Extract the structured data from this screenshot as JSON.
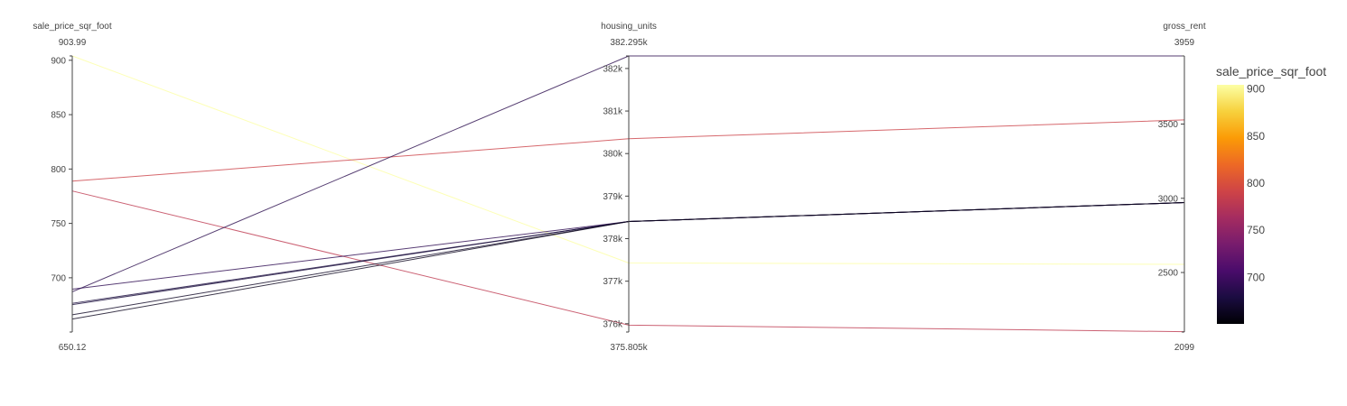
{
  "chart_data": {
    "type": "parallel_coordinates",
    "dimensions": [
      {
        "label": "sale_price_sqr_foot",
        "range": [
          650.12,
          903.99
        ],
        "range_labels": [
          "650.12",
          "903.99"
        ],
        "ticks": [
          {
            "value": 700,
            "label": "700"
          },
          {
            "value": 750,
            "label": "750"
          },
          {
            "value": 800,
            "label": "800"
          },
          {
            "value": 850,
            "label": "850"
          },
          {
            "value": 900,
            "label": "900"
          }
        ]
      },
      {
        "label": "housing_units",
        "range": [
          375805,
          382295
        ],
        "range_labels": [
          "375.805k",
          "382.295k"
        ],
        "ticks": [
          {
            "value": 376000,
            "label": "376k"
          },
          {
            "value": 377000,
            "label": "377k"
          },
          {
            "value": 378000,
            "label": "378k"
          },
          {
            "value": 379000,
            "label": "379k"
          },
          {
            "value": 380000,
            "label": "380k"
          },
          {
            "value": 381000,
            "label": "381k"
          },
          {
            "value": 382000,
            "label": "382k"
          }
        ]
      },
      {
        "label": "gross_rent",
        "range": [
          2099,
          3959
        ],
        "range_labels": [
          "2099",
          "3959"
        ],
        "ticks": [
          {
            "value": 2500,
            "label": "2500"
          },
          {
            "value": 3000,
            "label": "3000"
          },
          {
            "value": 3500,
            "label": "3500"
          }
        ]
      }
    ],
    "lines": [
      {
        "sale_price_sqr_foot": 903.99,
        "housing_units": 377427,
        "gross_rent": 2555
      },
      {
        "sale_price_sqr_foot": 788.84,
        "housing_units": 380348,
        "gross_rent": 3528
      },
      {
        "sale_price_sqr_foot": 779.81,
        "housing_units": 375967,
        "gross_rent": 2101
      },
      {
        "sale_price_sqr_foot": 689.56,
        "housing_units": 378402,
        "gross_rent": 2971
      },
      {
        "sale_price_sqr_foot": 687.09,
        "housing_units": 382295,
        "gross_rent": 3959
      },
      {
        "sale_price_sqr_foot": 676.51,
        "housing_units": 378402,
        "gross_rent": 2971
      },
      {
        "sale_price_sqr_foot": 675.35,
        "housing_units": 378402,
        "gross_rent": 2971
      },
      {
        "sale_price_sqr_foot": 665.96,
        "housing_units": 378402,
        "gross_rent": 2971
      },
      {
        "sale_price_sqr_foot": 662.02,
        "housing_units": 378402,
        "gross_rent": 2971
      }
    ],
    "colorbar": {
      "title": "sale_price_sqr_foot",
      "colorscale": "inferno",
      "range": [
        650.12,
        903.99
      ],
      "ticks": [
        700,
        750,
        800,
        850,
        900
      ],
      "colors": [
        "#000004",
        "#1b0c41",
        "#4a0c6b",
        "#781c6d",
        "#a52c60",
        "#cf4446",
        "#ed6925",
        "#fb9b06",
        "#f7d13d",
        "#fcffa4"
      ]
    }
  }
}
